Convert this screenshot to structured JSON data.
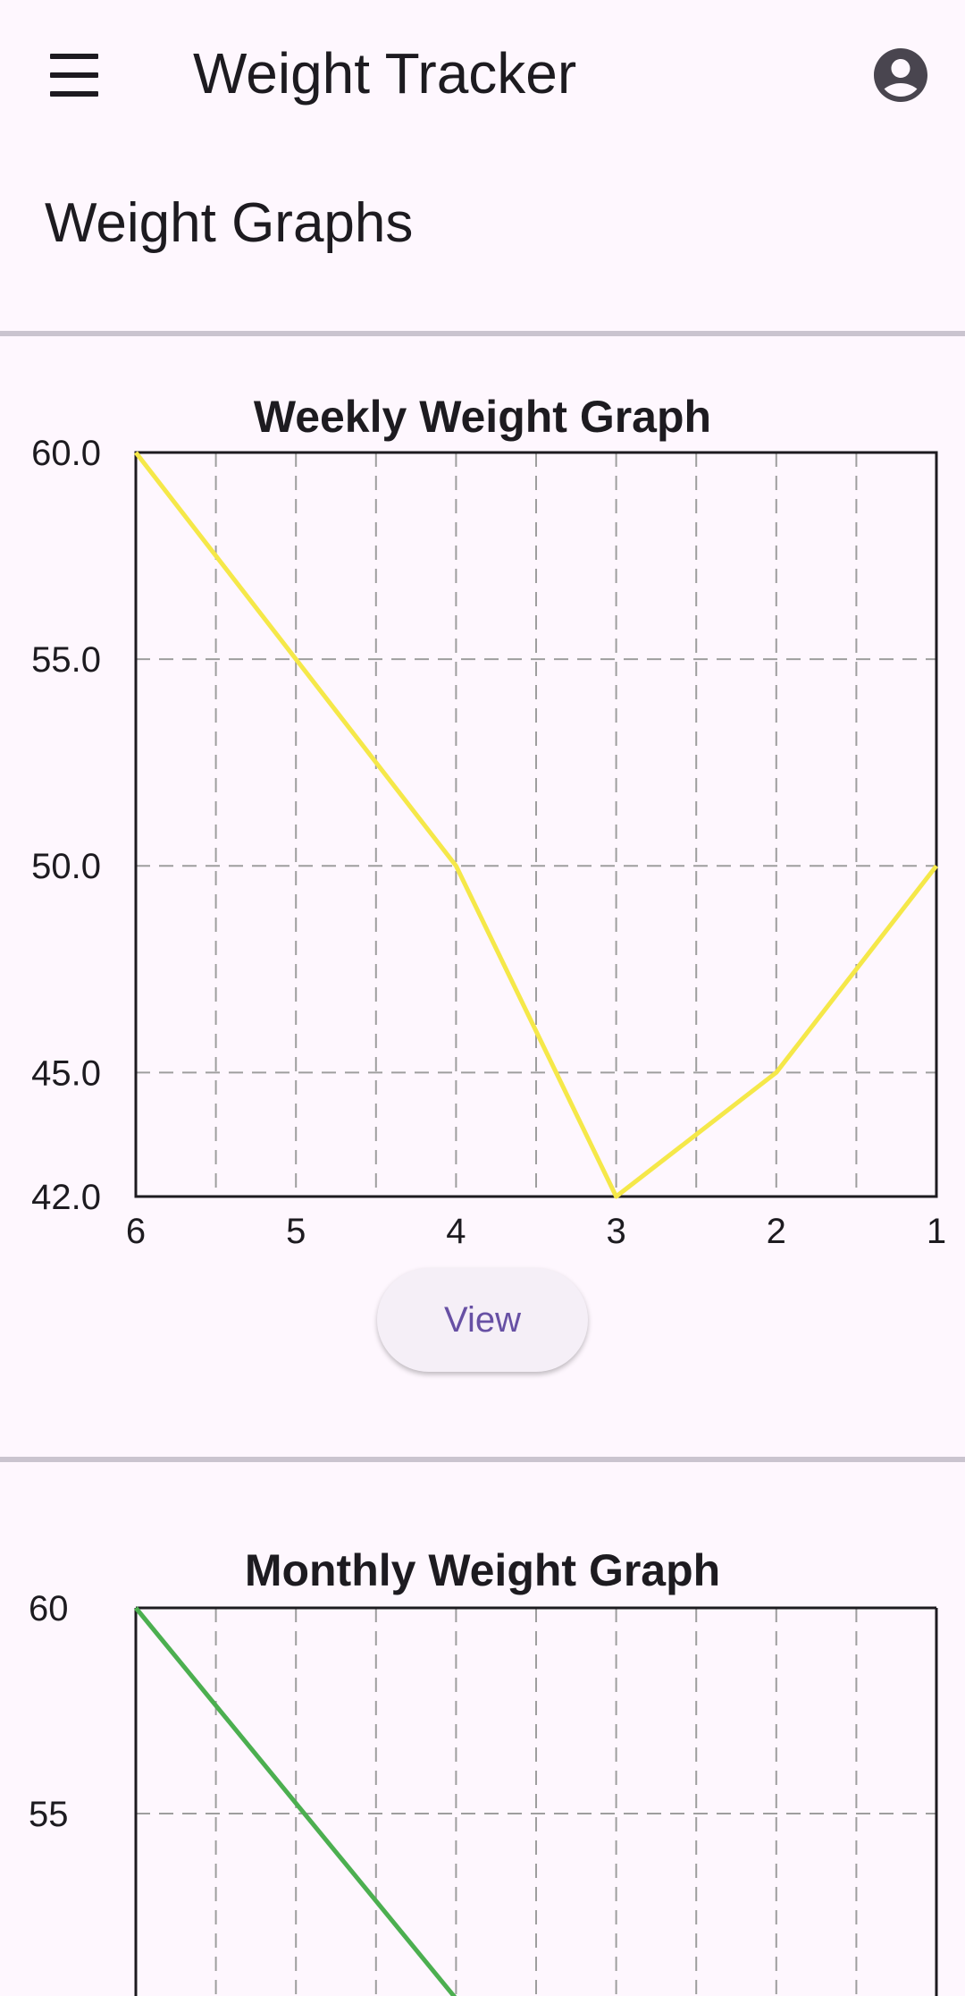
{
  "appbar": {
    "title": "Weight Tracker",
    "menu_icon": "hamburger-menu-icon",
    "profile_icon": "account-circle-icon"
  },
  "section": {
    "title": "Weight Graphs"
  },
  "weekly": {
    "view_label": "View"
  },
  "colors": {
    "background": "#fef7fe",
    "weekly_line": "#f5e849",
    "monthly_line": "#4caf50",
    "accent": "#6750a4",
    "divider": "#cac4cf"
  },
  "chart_data": [
    {
      "type": "line",
      "title": "Weekly Weight Graph",
      "x": [
        6,
        5,
        4,
        3,
        2,
        1
      ],
      "x_ticks": [
        "6",
        "5",
        "4",
        "3",
        "2",
        "1"
      ],
      "series": [
        {
          "values": [
            60,
            55,
            50,
            42,
            45,
            50
          ]
        }
      ],
      "xlim": [
        6,
        1
      ],
      "ylim": [
        42,
        60
      ],
      "y_ticks": [
        "42.0",
        "45.0",
        "50.0",
        "55.0",
        "60.0"
      ],
      "y_tick_values": [
        42,
        45,
        50,
        55,
        60
      ],
      "grid": true
    },
    {
      "type": "line",
      "title": "Monthly Weight Graph",
      "x": [
        6,
        4
      ],
      "series": [
        {
          "values": [
            60,
            50.5
          ]
        }
      ],
      "xlim": [
        6,
        1
      ],
      "y_ticks": [
        "60",
        "55"
      ],
      "y_tick_values": [
        60,
        55
      ],
      "grid": true
    }
  ]
}
